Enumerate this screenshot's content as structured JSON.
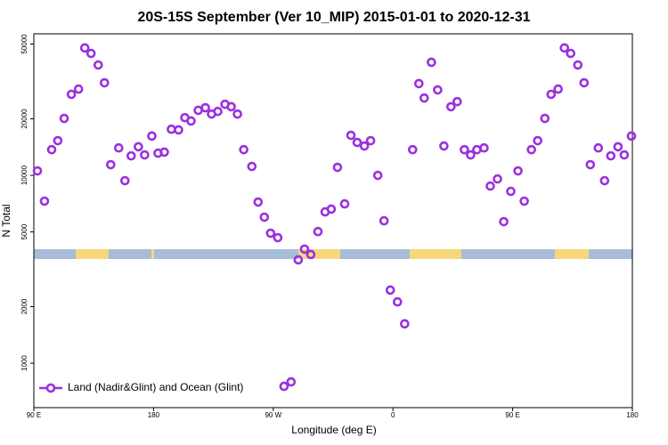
{
  "chart_data": {
    "type": "scatter",
    "title": "20S-15S September (Ver 10_MIP)   2015-01-01 to 2020-12-31",
    "x_label": "Longitude (deg E)",
    "y_label": "N Total",
    "log_y": true,
    "xlim": [
      90,
      540
    ],
    "ylim": [
      580,
      56700
    ],
    "xticks": [
      {
        "value": 90,
        "label": "90 E"
      },
      180,
      {
        "value": 270,
        "label": "90 W"
      },
      {
        "value": 360,
        "label": "0"
      },
      {
        "value": 450,
        "label": "90 E"
      },
      {
        "value": 540,
        "label": "180"
      }
    ],
    "yticks": [
      1000,
      2000,
      5000,
      10000,
      20000,
      50000
    ],
    "legend_position": "bottom-left",
    "x": [
      92.7,
      98,
      103.4,
      108,
      112.8,
      118.2,
      123.6,
      128.3,
      133,
      138.4,
      143.1,
      147.8,
      153.8,
      158.5,
      163.2,
      168.6,
      173.3,
      178.7,
      183.4,
      188.1,
      193.4,
      198.8,
      203.5,
      208.2,
      213.6,
      219,
      223.6,
      228.3,
      233.7,
      238.4,
      243.1,
      247.8,
      253.9,
      258.6,
      263.3,
      268,
      273.4,
      278.1,
      283.4,
      288.8,
      293.5,
      298.2,
      303.6,
      309,
      313.6,
      318.3,
      323.7,
      328.4,
      333.1,
      338.5,
      343.2,
      348.6,
      353.3,
      358,
      363.4,
      368.8,
      374.8,
      379.5,
      383.5,
      388.9,
      393.6,
      398.3,
      403.6,
      408.3,
      413.7,
      418.4,
      423.1,
      428.5,
      433.2,
      438.6,
      443.3,
      448.6,
      454,
      458.7,
      464.1,
      468.8,
      474.2,
      478.9,
      484.2,
      488.9,
      493.6,
      499,
      503.7,
      508.4,
      514.4,
      519.1,
      523.8,
      529.2,
      533.9,
      539.3
    ],
    "series": [
      {
        "name": "Land (Nadir&Glint) and Ocean (Glint)",
        "color": "#9b30e0",
        "values": [
          10560,
          7290,
          13700,
          15300,
          20100,
          27000,
          28800,
          47700,
          44600,
          38700,
          31100,
          11400,
          14000,
          9370,
          12700,
          14200,
          12850,
          16200,
          13130,
          13300,
          17600,
          17460,
          20300,
          19470,
          22200,
          22900,
          21200,
          21900,
          23900,
          23200,
          21200,
          13700,
          11150,
          7210,
          5990,
          4920,
          4660,
          753,
          795,
          3550,
          4050,
          3790,
          5020,
          6390,
          6610,
          11030,
          7050,
          16340,
          14970,
          14330,
          15300,
          10000,
          5730,
          2450,
          2120,
          1620,
          13700,
          30800,
          25800,
          40000,
          28500,
          14330,
          23200,
          24700,
          13700,
          12850,
          13700,
          14000,
          8770,
          9570,
          5670,
          8220,
          10560,
          7290,
          13700,
          15300,
          20100,
          27000,
          28800,
          47700,
          44600,
          38700,
          31100,
          11400,
          14000,
          9370,
          12700,
          14200,
          12850,
          16200
        ]
      }
    ]
  }
}
